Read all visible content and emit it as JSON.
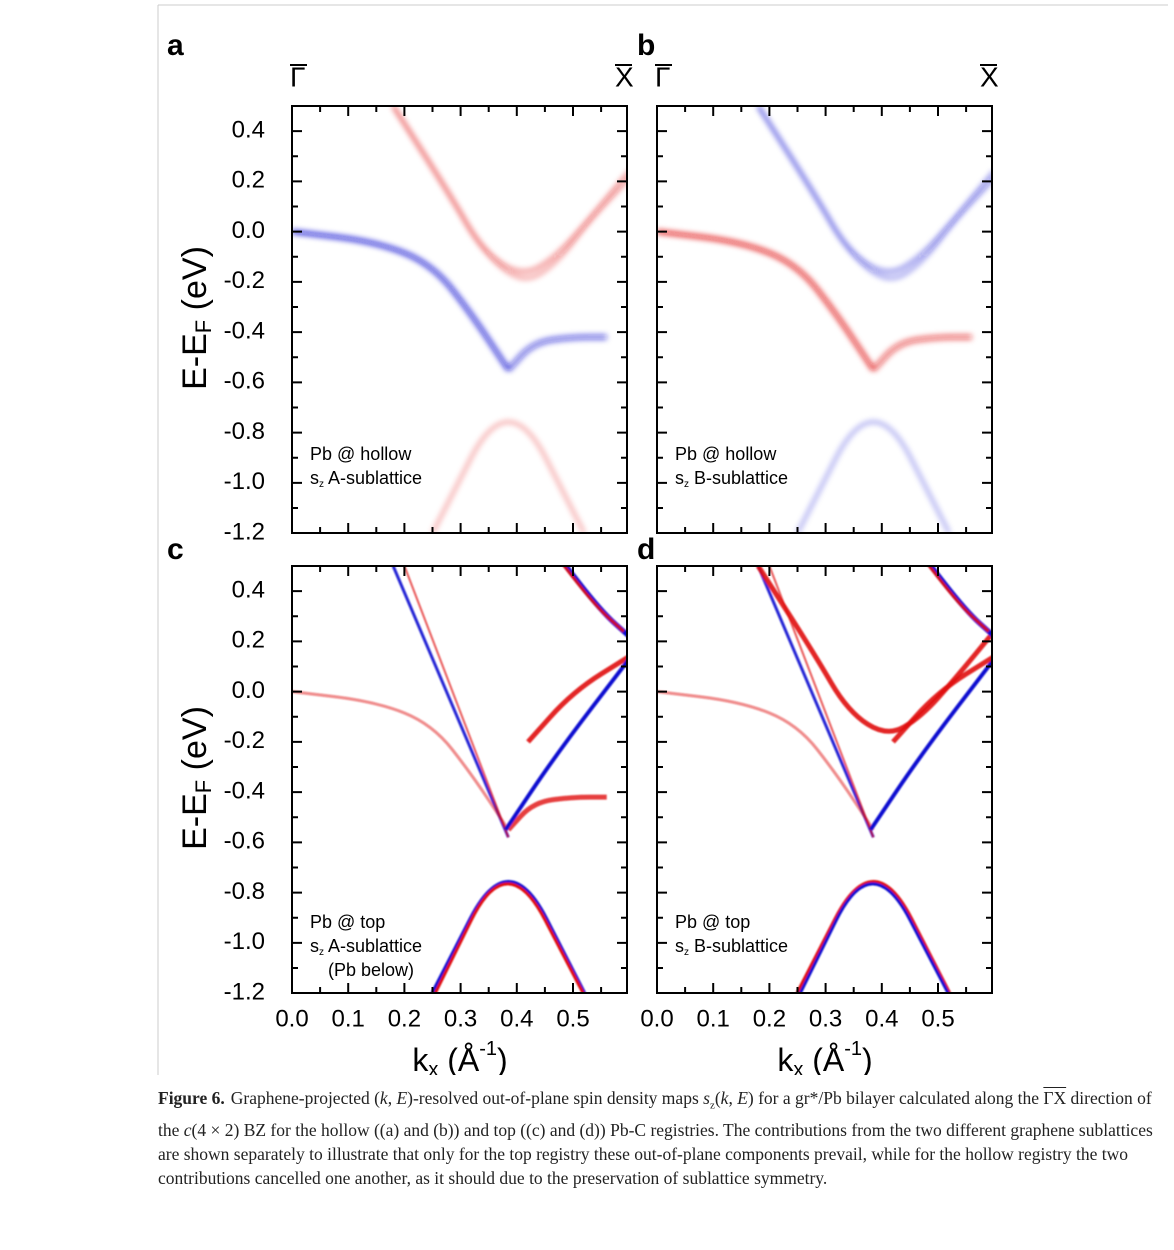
{
  "figure": {
    "panels": [
      {
        "letter": "a",
        "k_start": "Γ",
        "k_end": "X",
        "note": [
          [
            "Pb @ hollow"
          ],
          [
            "s",
            "z",
            " A-sublattice"
          ]
        ]
      },
      {
        "letter": "b",
        "k_start": "Γ",
        "k_end": "X",
        "note": [
          [
            "Pb @ hollow"
          ],
          [
            "s",
            "z",
            "  B-sublattice"
          ]
        ]
      },
      {
        "letter": "c",
        "note": [
          [
            "Pb @ top"
          ],
          [
            "s",
            "z",
            "  A-sublattice"
          ],
          [
            "(Pb below)"
          ]
        ]
      },
      {
        "letter": "d",
        "note": [
          [
            "Pb @ top"
          ],
          [
            "s",
            "z",
            "  B-sublattice"
          ]
        ]
      }
    ],
    "y_label": [
      "E-E",
      "F",
      " (eV)"
    ],
    "x_label": [
      "k",
      "x",
      " (Å",
      "-1",
      ")"
    ],
    "yticks": [
      "0.4",
      "0.2",
      "0.0",
      "-0.2",
      "-0.4",
      "-0.6",
      "-0.8",
      "-1.0",
      "-1.2"
    ],
    "xticks": [
      "0.0",
      "0.1",
      "0.2",
      "0.3",
      "0.4",
      "0.5"
    ]
  },
  "caption": {
    "label": "Figure 6.",
    "segments": [
      "Graphene-projected (",
      "k",
      ", ",
      "E",
      ")-resolved out-of-plane spin density maps ",
      "s",
      "z",
      "(",
      "k",
      ", ",
      "E",
      ") for a gr*/Pb bilayer calculated along the ",
      "ΓX",
      " direction of the ",
      "c",
      "(4 × 2) BZ for the hollow ((a) and (b)) and top ((c) and (d)) Pb-C registries. The contributions from the two different graphene sublattices are shown separately to illustrate that only for the top registry these out-of-plane components prevail, while for the hollow registry the two contributions cancelled one another, as it should due to the preservation of sublattice symmetry."
    ]
  }
}
